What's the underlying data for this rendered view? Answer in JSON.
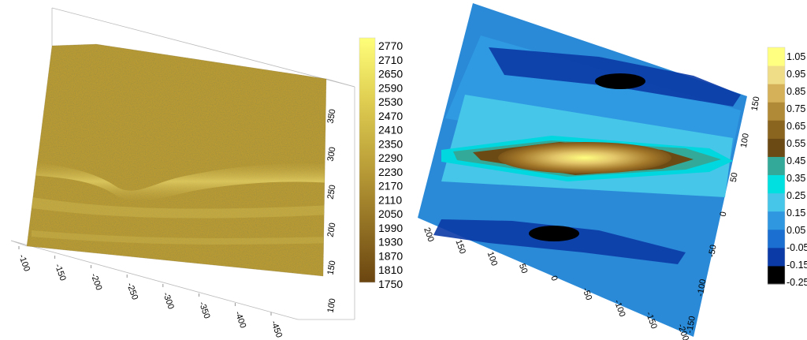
{
  "chart_data": [
    {
      "type": "heatmap",
      "x_ticks": [
        "-100",
        "-150",
        "-200",
        "-250",
        "-300",
        "-350",
        "-400",
        "-450"
      ],
      "y_ticks": [
        "100",
        "150",
        "200",
        "250",
        "300",
        "350"
      ],
      "colorbar": {
        "ticks": [
          "2770",
          "2710",
          "2650",
          "2590",
          "2530",
          "2470",
          "2410",
          "2350",
          "2290",
          "2230",
          "2170",
          "2110",
          "2050",
          "1990",
          "1930",
          "1870",
          "1810",
          "1750"
        ],
        "range": [
          1750,
          2770
        ],
        "colors": [
          "#6b4510",
          "#e6d24a",
          "#ffff7a"
        ]
      }
    },
    {
      "type": "heatmap",
      "x_ticks": [
        "200",
        "150",
        "100",
        "50",
        "0",
        "-50",
        "-100",
        "-150",
        "-200"
      ],
      "y_ticks": [
        "-150",
        "-100",
        "-50",
        "0",
        "50",
        "100",
        "150"
      ],
      "colorbar": {
        "ticks": [
          "1.05",
          "0.95",
          "0.85",
          "0.75",
          "0.65",
          "0.55",
          "0.45",
          "0.35",
          "0.25",
          "0.15",
          "0.05",
          "-0.05",
          "-0.15",
          "-0.25"
        ],
        "range": [
          -0.25,
          1.05
        ],
        "colors": [
          "#000000",
          "#0b3aa6",
          "#1a6fd0",
          "#2f96e0",
          "#46c6e8",
          "#00e0e0",
          "#33a99a",
          "#6b4a14",
          "#8a6520",
          "#b08a36",
          "#d5b25a",
          "#f0dd88",
          "#ffff80"
        ]
      }
    }
  ]
}
